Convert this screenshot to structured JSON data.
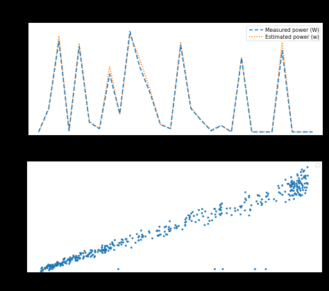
{
  "colors": {
    "background": "#000000",
    "panel": "#ffffff",
    "measured": "#1f77b4",
    "estimated": "#ff7f0e",
    "scatter": "#1f77b4"
  },
  "chart_data": [
    {
      "type": "line",
      "title": "",
      "xlabel": "",
      "ylabel": "",
      "x": [
        0,
        1,
        2,
        3,
        4,
        5,
        6,
        7,
        8,
        9,
        10,
        11,
        12,
        13,
        14,
        15,
        16,
        17,
        18,
        19,
        20,
        21,
        22,
        23,
        24,
        25,
        26,
        27
      ],
      "series": [
        {
          "name": "Measured power (W)",
          "style": "dashed",
          "values": [
            0.03,
            0.25,
            0.88,
            0.04,
            0.83,
            0.12,
            0.06,
            0.57,
            0.2,
            0.97,
            0.63,
            0.39,
            0.1,
            0.06,
            0.84,
            0.25,
            0.14,
            0.04,
            0.09,
            0.03,
            0.72,
            0.03,
            0.03,
            0.03,
            0.79,
            0.03,
            0.03,
            0.03
          ]
        },
        {
          "name": "Estimated power (w)",
          "style": "dotted",
          "values": [
            0.03,
            0.24,
            0.93,
            0.05,
            0.86,
            0.13,
            0.06,
            0.64,
            0.19,
            0.94,
            0.7,
            0.42,
            0.1,
            0.06,
            0.87,
            0.26,
            0.14,
            0.05,
            0.09,
            0.03,
            0.73,
            0.03,
            0.03,
            0.03,
            0.87,
            0.03,
            0.03,
            0.03
          ]
        }
      ],
      "xlim": [
        -1,
        28
      ],
      "ylim": [
        0,
        1.05
      ],
      "grid": false,
      "legend_position": "top-right"
    },
    {
      "type": "scatter",
      "title": "",
      "xlabel": "",
      "ylabel": "",
      "trend_start": [
        0.0,
        0.02
      ],
      "trend_end": [
        1.0,
        0.86
      ],
      "outliers": [
        [
          0.29,
          0.03
        ],
        [
          0.65,
          0.03
        ],
        [
          0.68,
          0.03
        ],
        [
          0.8,
          0.03
        ],
        [
          0.84,
          0.03
        ]
      ],
      "point_count": 420,
      "xlim": [
        -0.05,
        1.05
      ],
      "ylim": [
        0,
        1.05
      ],
      "grid": false,
      "legend_position": "top-right"
    }
  ]
}
